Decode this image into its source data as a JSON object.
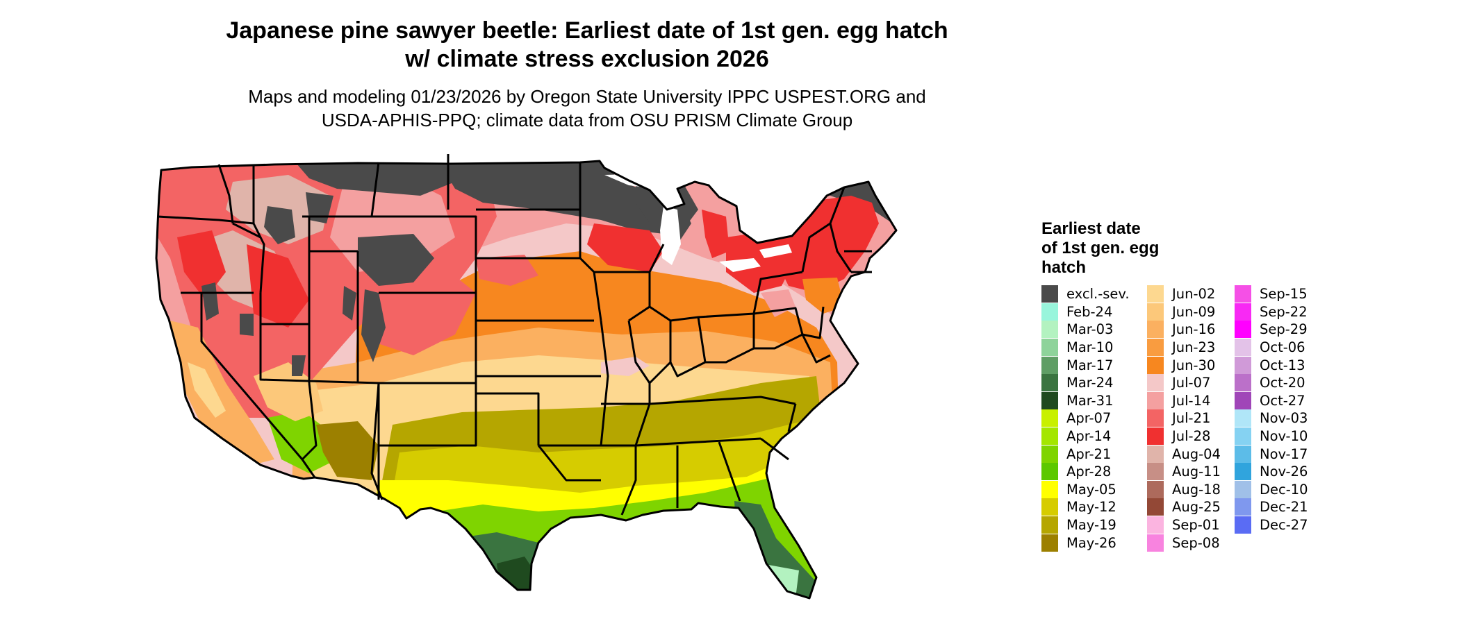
{
  "title": {
    "line1": "Japanese pine sawyer beetle: Earliest date of 1st gen. egg hatch",
    "line2": "w/ climate stress exclusion 2026"
  },
  "subtitle": {
    "line1": "Maps and modeling 01/23/2026 by Oregon State University IPPC USPEST.ORG and",
    "line2": "USDA-APHIS-PPQ; climate data from OSU PRISM Climate Group"
  },
  "legend": {
    "title": [
      "Earliest date",
      "of 1st gen. egg",
      "hatch"
    ],
    "columns": [
      [
        {
          "label": "excl.-sev.",
          "color": "#4a4a4a"
        },
        {
          "label": "Feb-24",
          "color": "#99f5dc"
        },
        {
          "label": "Mar-03",
          "color": "#b3f2c0"
        },
        {
          "label": "Mar-10",
          "color": "#8ed39a"
        },
        {
          "label": "Mar-17",
          "color": "#5f9e65"
        },
        {
          "label": "Mar-24",
          "color": "#3a7440"
        },
        {
          "label": "Mar-31",
          "color": "#1f4a1f"
        },
        {
          "label": "Apr-07",
          "color": "#c8f000"
        },
        {
          "label": "Apr-14",
          "color": "#a4e600"
        },
        {
          "label": "Apr-21",
          "color": "#7fd400"
        },
        {
          "label": "Apr-28",
          "color": "#5cc800"
        },
        {
          "label": "May-05",
          "color": "#ffff00"
        },
        {
          "label": "May-12",
          "color": "#d6cc00"
        },
        {
          "label": "May-19",
          "color": "#b5a600"
        },
        {
          "label": "May-26",
          "color": "#9c8000"
        }
      ],
      [
        {
          "label": "Jun-02",
          "color": "#fdd890"
        },
        {
          "label": "Jun-09",
          "color": "#fcc87a"
        },
        {
          "label": "Jun-16",
          "color": "#fbb060"
        },
        {
          "label": "Jun-23",
          "color": "#f99c40"
        },
        {
          "label": "Jun-30",
          "color": "#f7871f"
        },
        {
          "label": "Jul-07",
          "color": "#f4c8c8"
        },
        {
          "label": "Jul-14",
          "color": "#f4a0a0"
        },
        {
          "label": "Jul-21",
          "color": "#f36464"
        },
        {
          "label": "Jul-28",
          "color": "#f03030"
        },
        {
          "label": "Aug-04",
          "color": "#e0b4aa"
        },
        {
          "label": "Aug-11",
          "color": "#c78f86"
        },
        {
          "label": "Aug-18",
          "color": "#ad6a5c"
        },
        {
          "label": "Aug-25",
          "color": "#934836"
        },
        {
          "label": "Sep-01",
          "color": "#fbb4e0"
        },
        {
          "label": "Sep-08",
          "color": "#f883df"
        }
      ],
      [
        {
          "label": "Sep-15",
          "color": "#f550e6"
        },
        {
          "label": "Sep-22",
          "color": "#f829f4"
        },
        {
          "label": "Sep-29",
          "color": "#ff00ff"
        },
        {
          "label": "Oct-06",
          "color": "#e3c2e8"
        },
        {
          "label": "Oct-13",
          "color": "#d09ad8"
        },
        {
          "label": "Oct-20",
          "color": "#bb70c9"
        },
        {
          "label": "Oct-27",
          "color": "#a046b8"
        },
        {
          "label": "Nov-03",
          "color": "#b0e6f8"
        },
        {
          "label": "Nov-10",
          "color": "#85d2f2"
        },
        {
          "label": "Nov-17",
          "color": "#5cbce8"
        },
        {
          "label": "Nov-26",
          "color": "#30a4dd"
        },
        {
          "label": "Dec-10",
          "color": "#a0c0e8"
        },
        {
          "label": "Dec-21",
          "color": "#7f98ee"
        },
        {
          "label": "Dec-27",
          "color": "#5a6cf4"
        }
      ]
    ]
  }
}
